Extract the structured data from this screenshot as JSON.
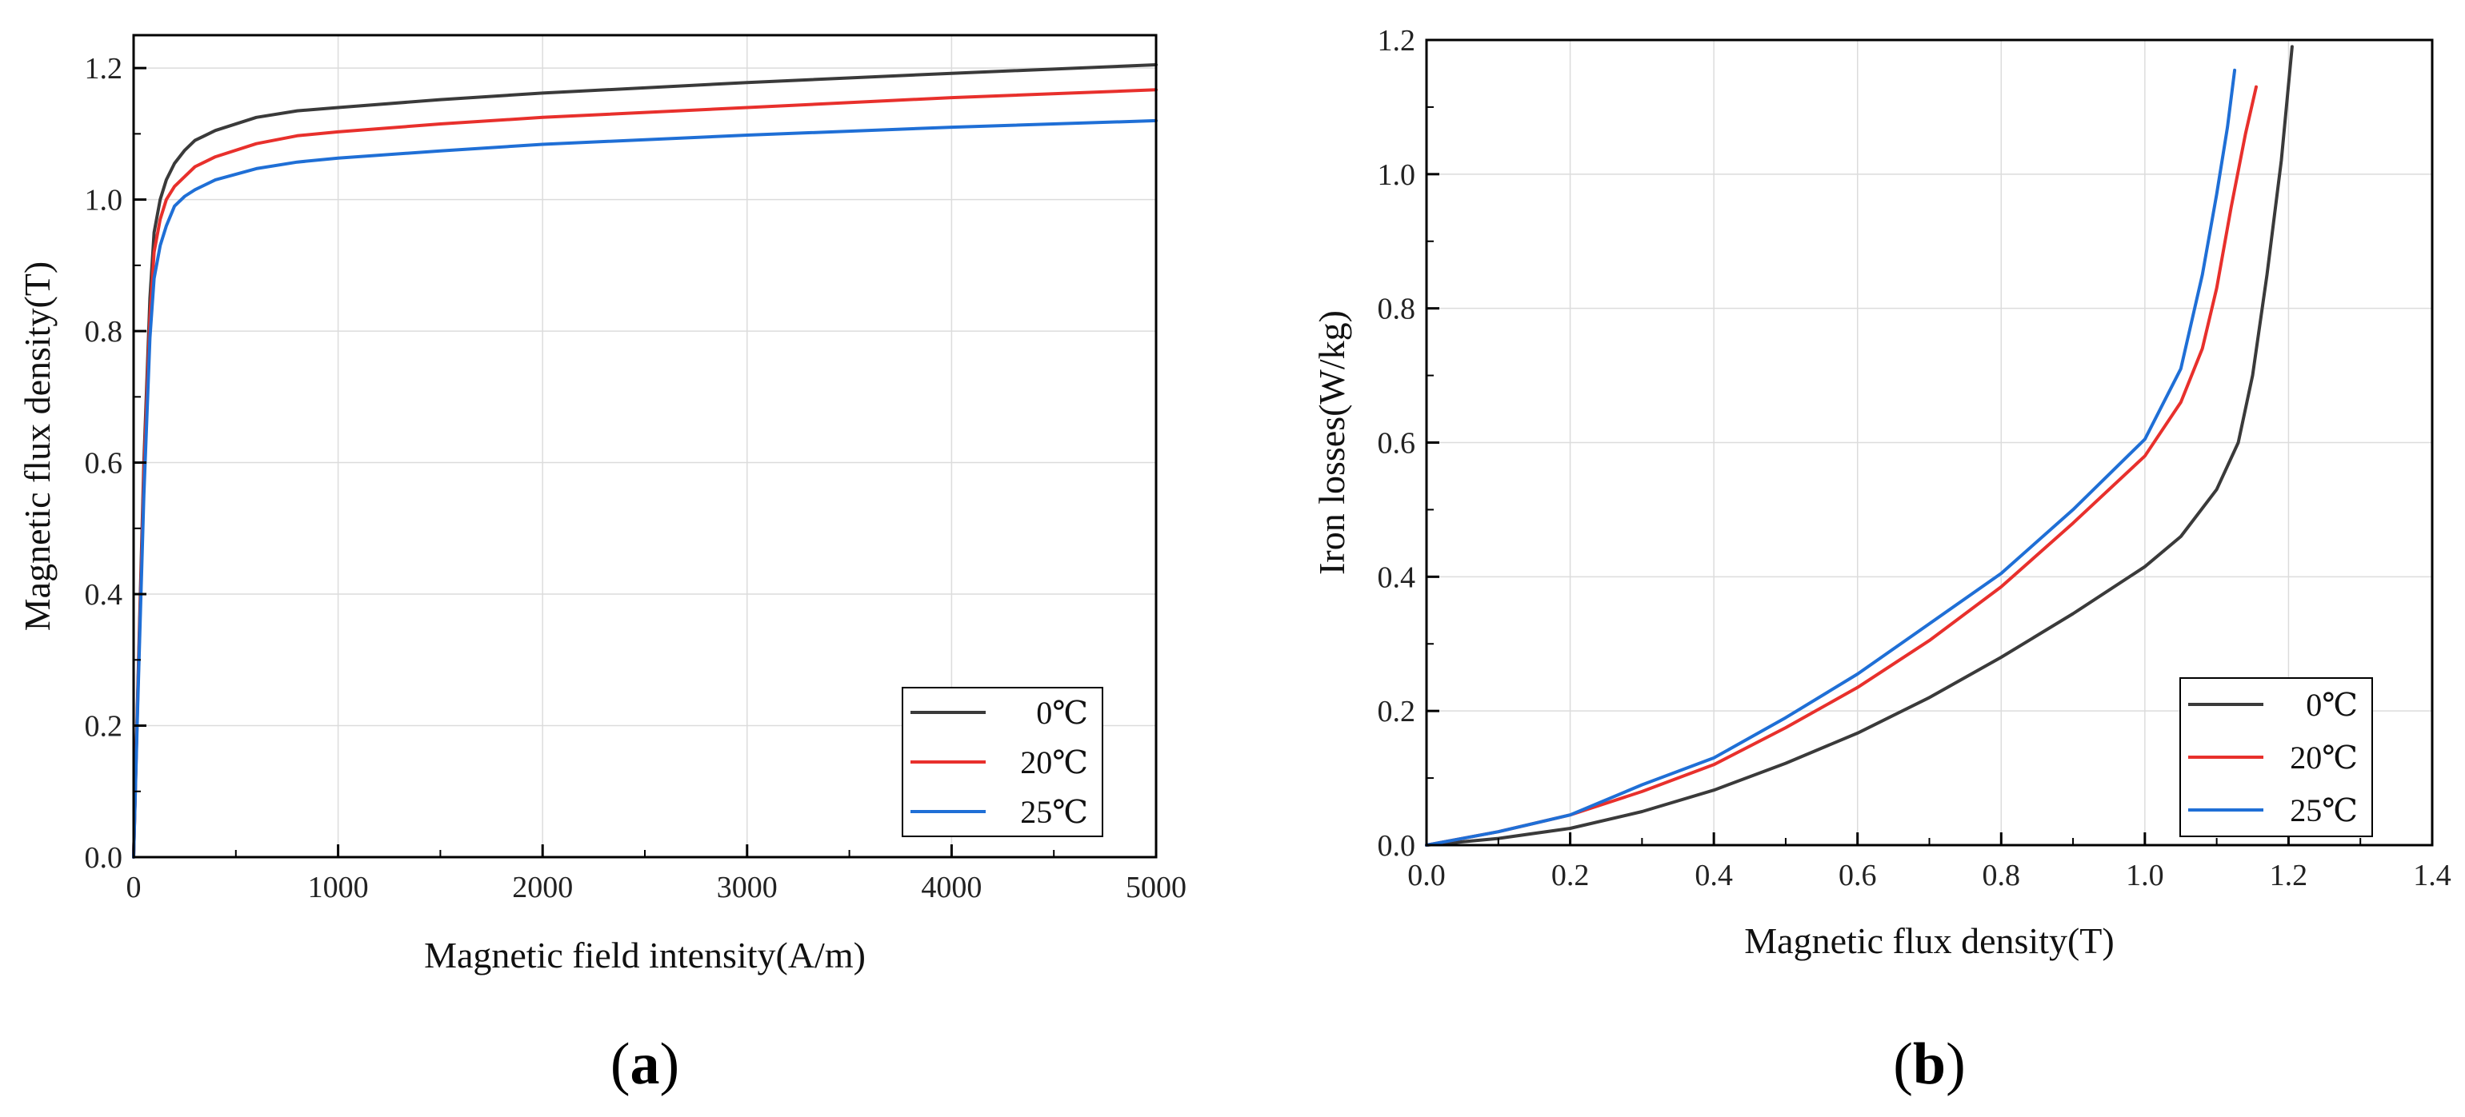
{
  "colors": {
    "c0": "#3a3a3a",
    "c20": "#e8302c",
    "c25": "#1f6fd6",
    "grid": "#dcdcdc",
    "axis": "#000000"
  },
  "chart_data": [
    {
      "id": "a",
      "panel_label": "a",
      "type": "line",
      "xlabel": "Magnetic field intensity(A/m)",
      "ylabel": "Magnetic flux density(T)",
      "xlim": [
        0,
        5000
      ],
      "ylim": [
        0,
        1.25
      ],
      "xticks": [
        0,
        1000,
        2000,
        3000,
        4000,
        5000
      ],
      "xtick_labels": [
        "0",
        "1000",
        "2000",
        "3000",
        "4000",
        "5000"
      ],
      "yticks": [
        0,
        0.2,
        0.4,
        0.6,
        0.8,
        1.0,
        1.2
      ],
      "ytick_labels": [
        "0.0",
        "0.2",
        "0.4",
        "0.6",
        "0.8",
        "1.0",
        "1.2"
      ],
      "grid": true,
      "legend_position": "bottom-right",
      "series": [
        {
          "name": "0℃",
          "color_key": "c0",
          "x": [
            0,
            20,
            50,
            80,
            100,
            130,
            160,
            200,
            250,
            300,
            400,
            600,
            800,
            1000,
            1500,
            2000,
            3000,
            4000,
            5000
          ],
          "y": [
            0,
            0.25,
            0.6,
            0.85,
            0.95,
            1.0,
            1.03,
            1.055,
            1.075,
            1.09,
            1.105,
            1.125,
            1.135,
            1.14,
            1.152,
            1.162,
            1.178,
            1.192,
            1.205
          ]
        },
        {
          "name": "20℃",
          "color_key": "c20",
          "x": [
            0,
            20,
            50,
            80,
            100,
            130,
            160,
            200,
            250,
            300,
            400,
            600,
            800,
            1000,
            1500,
            2000,
            3000,
            4000,
            5000
          ],
          "y": [
            0,
            0.24,
            0.58,
            0.82,
            0.92,
            0.97,
            1.0,
            1.02,
            1.035,
            1.05,
            1.065,
            1.085,
            1.097,
            1.103,
            1.115,
            1.125,
            1.14,
            1.155,
            1.167
          ]
        },
        {
          "name": "25℃",
          "color_key": "c25",
          "x": [
            0,
            20,
            50,
            80,
            100,
            130,
            160,
            200,
            250,
            300,
            400,
            600,
            800,
            1000,
            1500,
            2000,
            3000,
            4000,
            5000
          ],
          "y": [
            0,
            0.23,
            0.55,
            0.79,
            0.88,
            0.93,
            0.96,
            0.99,
            1.005,
            1.015,
            1.03,
            1.047,
            1.057,
            1.063,
            1.074,
            1.084,
            1.098,
            1.11,
            1.12
          ]
        }
      ]
    },
    {
      "id": "b",
      "panel_label": "b",
      "type": "line",
      "xlabel": "Magnetic flux density(T)",
      "ylabel": "Iron losses(W/kg)",
      "xlim": [
        0,
        1.4
      ],
      "ylim": [
        0,
        1.2
      ],
      "xticks": [
        0,
        0.2,
        0.4,
        0.6,
        0.8,
        1.0,
        1.2,
        1.4
      ],
      "xtick_labels": [
        "0.0",
        "0.2",
        "0.4",
        "0.6",
        "0.8",
        "1.0",
        "1.2",
        "1.4"
      ],
      "yticks": [
        0,
        0.2,
        0.4,
        0.6,
        0.8,
        1.0,
        1.2
      ],
      "ytick_labels": [
        "0.0",
        "0.2",
        "0.4",
        "0.6",
        "0.8",
        "1.0",
        "1.2"
      ],
      "grid": true,
      "legend_position": "bottom-right",
      "series": [
        {
          "name": "0℃",
          "color_key": "c0",
          "x": [
            0,
            0.1,
            0.2,
            0.3,
            0.4,
            0.5,
            0.6,
            0.7,
            0.8,
            0.9,
            1.0,
            1.05,
            1.1,
            1.13,
            1.15,
            1.17,
            1.19,
            1.205
          ],
          "y": [
            0,
            0.01,
            0.025,
            0.05,
            0.082,
            0.122,
            0.167,
            0.22,
            0.28,
            0.345,
            0.415,
            0.46,
            0.53,
            0.6,
            0.7,
            0.85,
            1.02,
            1.19
          ]
        },
        {
          "name": "20℃",
          "color_key": "c20",
          "x": [
            0,
            0.1,
            0.2,
            0.3,
            0.4,
            0.5,
            0.6,
            0.7,
            0.8,
            0.9,
            1.0,
            1.05,
            1.08,
            1.1,
            1.12,
            1.14,
            1.155
          ],
          "y": [
            0,
            0.02,
            0.045,
            0.08,
            0.12,
            0.175,
            0.235,
            0.305,
            0.385,
            0.48,
            0.58,
            0.66,
            0.74,
            0.83,
            0.95,
            1.06,
            1.13
          ]
        },
        {
          "name": "25℃",
          "color_key": "c25",
          "x": [
            0,
            0.1,
            0.2,
            0.3,
            0.4,
            0.5,
            0.6,
            0.7,
            0.8,
            0.9,
            1.0,
            1.05,
            1.08,
            1.1,
            1.115,
            1.125
          ],
          "y": [
            0,
            0.02,
            0.045,
            0.09,
            0.13,
            0.19,
            0.255,
            0.33,
            0.405,
            0.5,
            0.605,
            0.71,
            0.85,
            0.97,
            1.07,
            1.155
          ]
        }
      ]
    }
  ]
}
